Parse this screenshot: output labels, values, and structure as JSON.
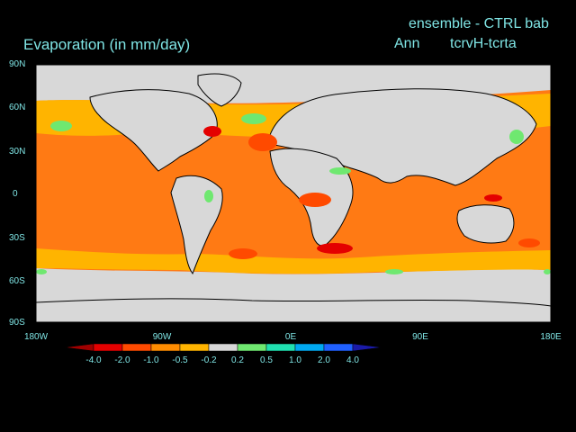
{
  "header": {
    "title": "Evaporation (in mm/day)",
    "ensemble": "ensemble - CTRL bab",
    "season": "Ann",
    "experiment": "tcrvH-tcrta"
  },
  "lat_labels": [
    "90N",
    "60N",
    "30N",
    "0",
    "30S",
    "60S",
    "90S"
  ],
  "lon_labels": [
    "180W",
    "90W",
    "0E",
    "90E",
    "180E"
  ],
  "colorbar": {
    "levels": [
      "-4.0",
      "-2.0",
      "-1.0",
      "-0.5",
      "-0.2",
      "0.2",
      "0.5",
      "1.0",
      "2.0",
      "4.0"
    ],
    "colors": [
      "#a00000",
      "#e40000",
      "#ff4a00",
      "#ff8c00",
      "#ffb400",
      "#d8d8d8",
      "#6fe870",
      "#20e0b0",
      "#00a8f0",
      "#2060ff",
      "#1a1aa8"
    ]
  },
  "colors": {
    "background": "#000000",
    "land_neutral": "#d8d8d8",
    "ocean_dominant": "#ff7a14",
    "coast": "#000000",
    "text": "#7fe5e5"
  }
}
